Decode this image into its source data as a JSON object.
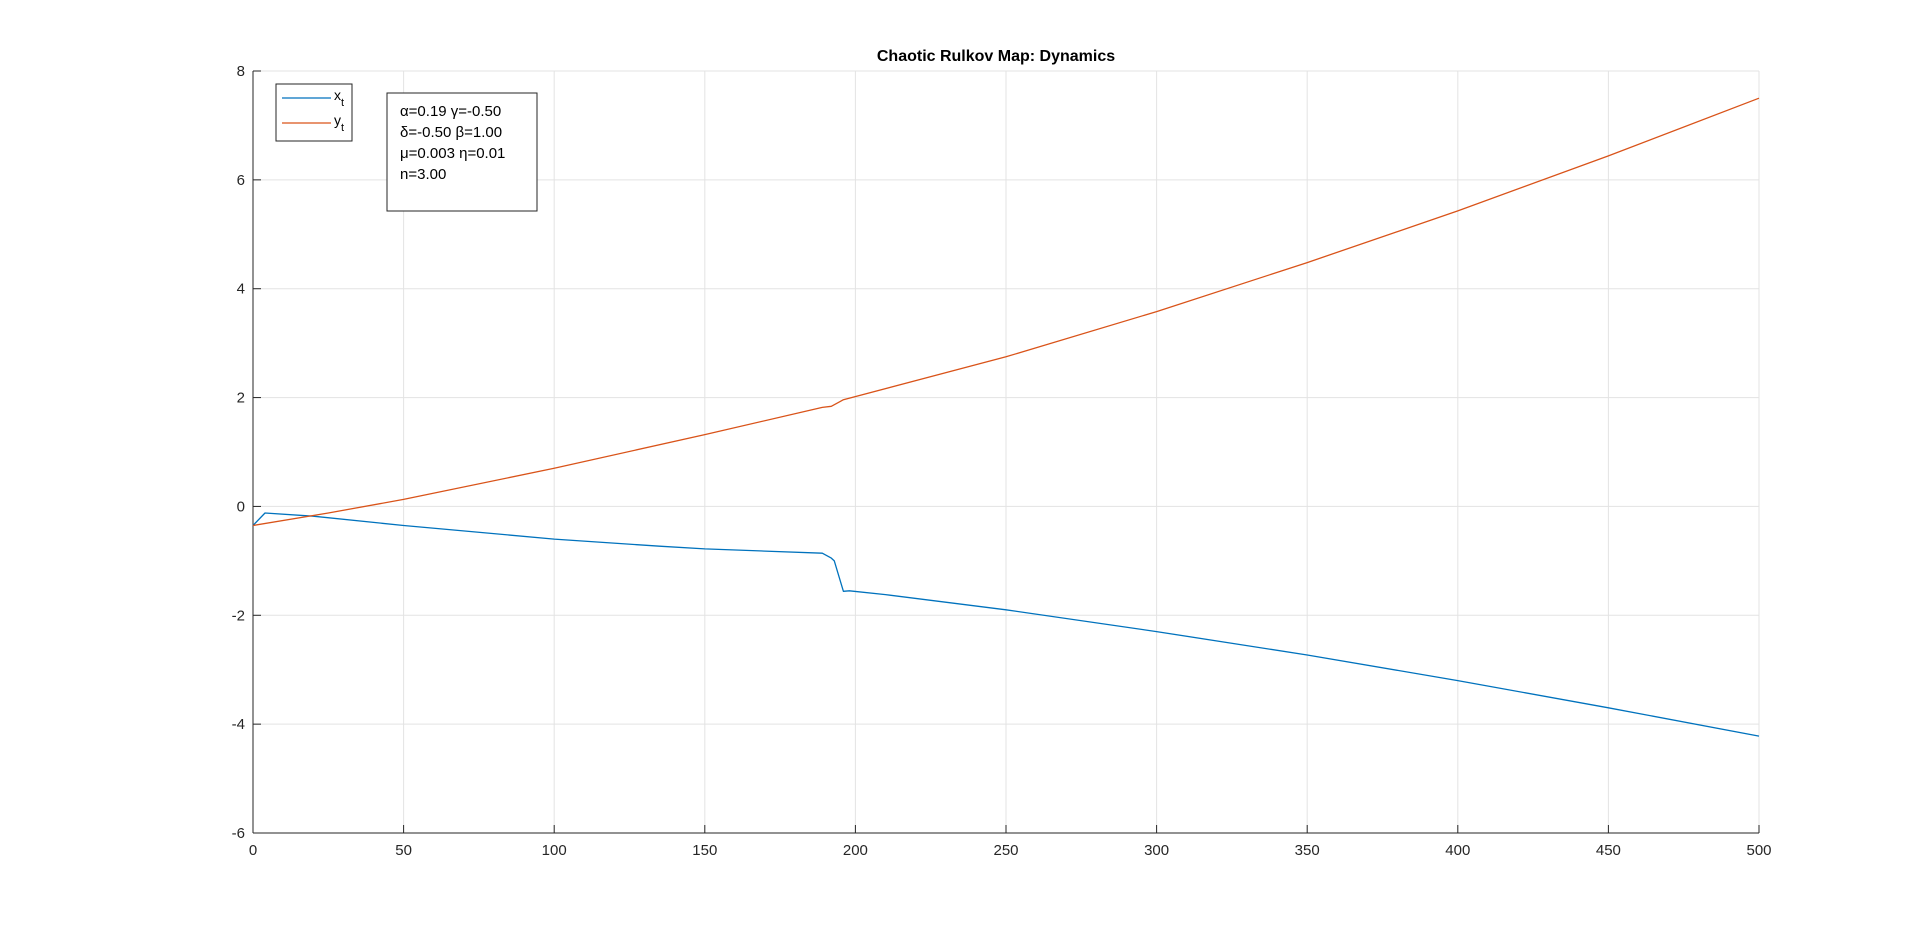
{
  "chart_data": {
    "type": "line",
    "title": "Chaotic Rulkov Map: Dynamics",
    "xlabel": "",
    "ylabel": "",
    "xlim": [
      0,
      500
    ],
    "ylim": [
      -6,
      8
    ],
    "x_ticks": [
      0,
      50,
      100,
      150,
      200,
      250,
      300,
      350,
      400,
      450,
      500
    ],
    "y_ticks": [
      -6,
      -4,
      -2,
      0,
      2,
      4,
      6,
      8
    ],
    "grid": true,
    "legend_position": "top-left",
    "series": [
      {
        "name": "x",
        "subscript": "t",
        "color": "#0072BD",
        "x": [
          0,
          4,
          20,
          50,
          100,
          135,
          150,
          170,
          189,
          192,
          193,
          196,
          198,
          210,
          250,
          300,
          350,
          400,
          450,
          500
        ],
        "y": [
          -0.35,
          -0.12,
          -0.18,
          -0.35,
          -0.6,
          -0.73,
          -0.78,
          -0.82,
          -0.86,
          -0.95,
          -1.0,
          -1.56,
          -1.55,
          -1.62,
          -1.9,
          -2.3,
          -2.73,
          -3.2,
          -3.7,
          -4.22
        ]
      },
      {
        "name": "y",
        "subscript": "t",
        "color": "#D95319",
        "x": [
          0,
          25,
          50,
          100,
          150,
          189,
          192,
          195,
          196,
          250,
          300,
          350,
          400,
          450,
          500
        ],
        "y": [
          -0.35,
          -0.12,
          0.13,
          0.7,
          1.32,
          1.82,
          1.84,
          1.93,
          1.96,
          2.75,
          3.58,
          4.48,
          5.43,
          6.44,
          7.5
        ]
      }
    ],
    "annotation": {
      "lines": [
        "α=0.19 γ=-0.50",
        "δ=-0.50 β=1.00",
        "μ=0.003 η=0.01",
        "n=3.00"
      ]
    }
  }
}
